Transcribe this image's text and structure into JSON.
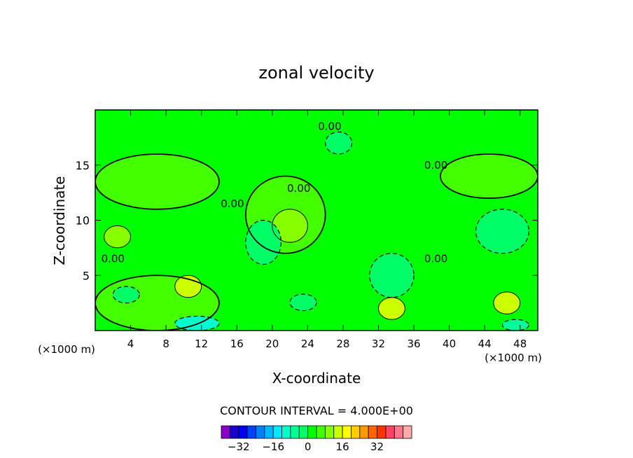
{
  "chart_data": {
    "type": "heatmap",
    "title": "zonal velocity",
    "xlabel": "X-coordinate",
    "ylabel": "Z-coordinate",
    "x_unit": "(×1000 m)",
    "z_unit": "(×1000 m)",
    "xlim": [
      0,
      50
    ],
    "ylim": [
      0,
      20
    ],
    "x_ticks": [
      4,
      8,
      12,
      16,
      20,
      24,
      28,
      32,
      36,
      40,
      44,
      48
    ],
    "y_ticks": [
      5,
      10,
      15
    ],
    "contour_interval_label": "CONTOUR INTERVAL = 4.000E+00",
    "contour_labels": [
      "0.00",
      "0.00",
      "0.00",
      "0.00",
      "0.00",
      "0.00"
    ],
    "colorbar": {
      "ticks": [
        -32,
        -16,
        0,
        16,
        32
      ],
      "colors": [
        "#8a00c8",
        "#1a00c8",
        "#0000f0",
        "#0040ff",
        "#0080ff",
        "#00b8ff",
        "#00e8ff",
        "#00ffcc",
        "#00ff99",
        "#00ff66",
        "#00ff00",
        "#44ff00",
        "#88ff00",
        "#ccff00",
        "#ffff00",
        "#ffcc00",
        "#ff9900",
        "#ff6600",
        "#ff3300",
        "#ff4466",
        "#ff7788",
        "#ffaaaa"
      ],
      "bounds": [
        -40,
        -36,
        -32,
        -28,
        -24,
        -20,
        -16,
        -12,
        -8,
        -4,
        0,
        4,
        8,
        12,
        16,
        20,
        24,
        28,
        32,
        36,
        40,
        44,
        48
      ]
    },
    "regions": [
      {
        "x": 0,
        "z": 0,
        "w": 50,
        "h": 20,
        "level": 0
      },
      {
        "x": 17,
        "z": 7,
        "w": 9,
        "h": 7,
        "level": 4
      },
      {
        "x": 0,
        "z": 11,
        "w": 14,
        "h": 5,
        "level": 4
      },
      {
        "x": 39,
        "z": 12,
        "w": 11,
        "h": 4,
        "level": 4
      },
      {
        "x": 0,
        "z": 0,
        "w": 14,
        "h": 5,
        "level": 4
      },
      {
        "x": 20,
        "z": 8,
        "w": 4,
        "h": 3,
        "level": 8
      },
      {
        "x": 9,
        "z": 3,
        "w": 3,
        "h": 2,
        "level": 12
      },
      {
        "x": 32,
        "z": 1,
        "w": 3,
        "h": 2,
        "level": 12
      },
      {
        "x": 45,
        "z": 1.5,
        "w": 3,
        "h": 2,
        "level": 12
      },
      {
        "x": 1,
        "z": 7.5,
        "w": 3,
        "h": 2,
        "level": 8
      },
      {
        "x": 17,
        "z": 6,
        "w": 4,
        "h": 4,
        "level": -4
      },
      {
        "x": 31,
        "z": 3,
        "w": 5,
        "h": 4,
        "level": -4
      },
      {
        "x": 43,
        "z": 7,
        "w": 6,
        "h": 4,
        "level": -4
      },
      {
        "x": 9,
        "z": 0,
        "w": 5,
        "h": 1.3,
        "level": -12
      },
      {
        "x": 46,
        "z": 0,
        "w": 3,
        "h": 1,
        "level": -8
      },
      {
        "x": 2,
        "z": 2.5,
        "w": 3,
        "h": 1.5,
        "level": -4
      },
      {
        "x": 22,
        "z": 1.8,
        "w": 3,
        "h": 1.5,
        "level": -4
      },
      {
        "x": 26,
        "z": 16,
        "w": 3,
        "h": 2,
        "level": -4
      }
    ]
  }
}
